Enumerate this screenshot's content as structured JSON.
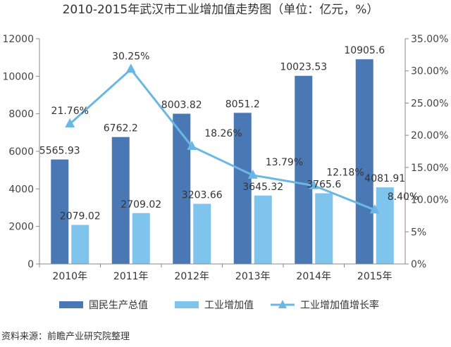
{
  "chart_data": {
    "type": "bar",
    "title": "2010-2015年武汉市工业增加值走势图（单位：亿元，%）",
    "categories": [
      "2010年",
      "2011年",
      "2012年",
      "2013年",
      "2014年",
      "2015年"
    ],
    "series": [
      {
        "name": "国民生产总值",
        "kind": "bar",
        "axis": "left",
        "color": "#4a78b5",
        "values": [
          5565.93,
          6762.2,
          8003.82,
          8051.2,
          10023.53,
          10905.6
        ],
        "labels": [
          "5565.93",
          "6762.2",
          "8003.82",
          "8051.2",
          "10023.53",
          "10905.6"
        ]
      },
      {
        "name": "工业增加值",
        "kind": "bar",
        "axis": "left",
        "color": "#7ec4ec",
        "values": [
          2079.02,
          2709.02,
          3203.66,
          3645.32,
          3765.6,
          4081.91
        ],
        "labels": [
          "2079.02",
          "2709.02",
          "3203.66",
          "3645.32",
          "3765.6",
          "4081.91"
        ]
      },
      {
        "name": "工业增加值增长率",
        "kind": "line",
        "axis": "right",
        "color": "#6ab7e4",
        "values": [
          21.76,
          30.25,
          18.26,
          13.79,
          12.18,
          8.4
        ],
        "labels": [
          "21.76%",
          "30.25%",
          "18.26%",
          "13.79%",
          "12.18%",
          "8.40%"
        ]
      }
    ],
    "y_left": {
      "min": 0,
      "max": 12000,
      "ticks": [
        "0",
        "2000",
        "4000",
        "6000",
        "8000",
        "10000",
        "12000"
      ]
    },
    "y_right": {
      "min": 0,
      "max": 35,
      "ticks": [
        "0%",
        "5%",
        "10.00%",
        "15.00%",
        "20.00%",
        "25.00%",
        "30.00%",
        "35.00%"
      ]
    },
    "legend": "bottom",
    "grid": false
  },
  "source": "资料来源：前瞻产业研究院整理"
}
